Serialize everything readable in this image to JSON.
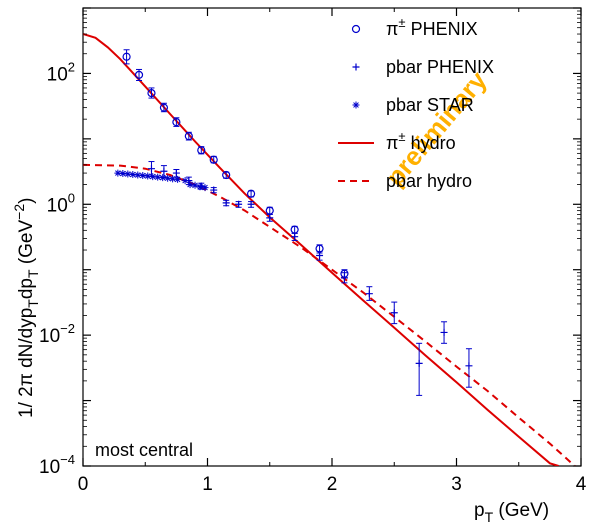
{
  "chart_data": {
    "type": "scatter",
    "title": "",
    "xlabel_main": "p",
    "xlabel_sub": "T",
    "xlabel_unit": " (GeV)",
    "ylabel": "1/ 2π dN/dyp",
    "ylabel_sub1": "T",
    "ylabel_mid": "dp",
    "ylabel_sub2": "T",
    "ylabel_unit": " (GeV",
    "ylabel_exp": "−2",
    "ylabel_close": ")",
    "xlim": [
      0,
      4
    ],
    "ylim_log10": [
      -4,
      3
    ],
    "y_scale": "log",
    "x_ticks": [
      {
        "v": 0,
        "label": "0"
      },
      {
        "v": 1,
        "label": "1"
      },
      {
        "v": 2,
        "label": "2"
      },
      {
        "v": 3,
        "label": "3"
      },
      {
        "v": 4,
        "label": "4"
      }
    ],
    "y_ticks": [
      {
        "exp": 2,
        "base": "10",
        "power": "2"
      },
      {
        "exp": 0,
        "base": "10",
        "power": "0"
      },
      {
        "exp": -2,
        "base": "10",
        "power": "−2"
      },
      {
        "exp": -4,
        "base": "10",
        "power": "−4"
      }
    ],
    "annotation": "most central",
    "watermark": "preliminary",
    "legend_position": "top-right",
    "legend": [
      {
        "label": "π",
        "sup": "±",
        "suffix": " PHENIX",
        "marker": "circle"
      },
      {
        "label": "pbar PHENIX",
        "marker": "plus"
      },
      {
        "label": "pbar STAR",
        "marker": "star"
      },
      {
        "label": "π",
        "sup": "±",
        "suffix": " hydro",
        "marker": "solid-line"
      },
      {
        "label": "pbar hydro",
        "marker": "dashed-line"
      }
    ],
    "colors": {
      "data": "#0000cc",
      "hydro": "#dd0000",
      "watermark": "#ffb000"
    },
    "series": [
      {
        "name": "π± PHENIX",
        "marker": "circle",
        "points": [
          {
            "x": 0.35,
            "y": 180,
            "elo": 140,
            "ehi": 230
          },
          {
            "x": 0.45,
            "y": 95,
            "elo": 78,
            "ehi": 115
          },
          {
            "x": 0.55,
            "y": 50,
            "elo": 42,
            "ehi": 60
          },
          {
            "x": 0.65,
            "y": 30,
            "elo": 26,
            "ehi": 35
          },
          {
            "x": 0.75,
            "y": 18,
            "elo": 15.5,
            "ehi": 21
          },
          {
            "x": 0.85,
            "y": 11,
            "elo": 9.6,
            "ehi": 12.6
          },
          {
            "x": 0.95,
            "y": 6.7,
            "elo": 5.9,
            "ehi": 7.6
          },
          {
            "x": 1.05,
            "y": 4.8,
            "elo": 4.3,
            "ehi": 5.4
          },
          {
            "x": 1.15,
            "y": 2.8,
            "elo": 2.5,
            "ehi": 3.1
          },
          {
            "x": 1.35,
            "y": 1.45,
            "elo": 1.3,
            "ehi": 1.6
          },
          {
            "x": 1.5,
            "y": 0.8,
            "elo": 0.7,
            "ehi": 0.9
          },
          {
            "x": 1.7,
            "y": 0.41,
            "elo": 0.36,
            "ehi": 0.46
          },
          {
            "x": 1.9,
            "y": 0.21,
            "elo": 0.18,
            "ehi": 0.24
          },
          {
            "x": 2.1,
            "y": 0.087,
            "elo": 0.075,
            "ehi": 0.1
          }
        ]
      },
      {
        "name": "pbar PHENIX",
        "marker": "plus",
        "points": [
          {
            "x": 0.55,
            "y": 3.5,
            "elo": 2.7,
            "ehi": 4.5
          },
          {
            "x": 0.65,
            "y": 3.2,
            "elo": 2.6,
            "ehi": 3.9
          },
          {
            "x": 0.75,
            "y": 3.0,
            "elo": 2.6,
            "ehi": 3.4
          },
          {
            "x": 0.85,
            "y": 2.3,
            "elo": 2.0,
            "ehi": 2.6
          },
          {
            "x": 0.95,
            "y": 1.9,
            "elo": 1.7,
            "ehi": 2.1
          },
          {
            "x": 1.05,
            "y": 1.65,
            "elo": 1.5,
            "ehi": 1.8
          },
          {
            "x": 1.15,
            "y": 1.05,
            "elo": 0.95,
            "ehi": 1.15
          },
          {
            "x": 1.25,
            "y": 1.0,
            "elo": 0.9,
            "ehi": 1.1
          },
          {
            "x": 1.35,
            "y": 1.0,
            "elo": 0.9,
            "ehi": 1.1
          },
          {
            "x": 1.5,
            "y": 0.62,
            "elo": 0.55,
            "ehi": 0.7
          },
          {
            "x": 1.7,
            "y": 0.32,
            "elo": 0.28,
            "ehi": 0.36
          },
          {
            "x": 1.9,
            "y": 0.165,
            "elo": 0.14,
            "ehi": 0.19
          },
          {
            "x": 2.1,
            "y": 0.075,
            "elo": 0.063,
            "ehi": 0.09
          },
          {
            "x": 2.3,
            "y": 0.043,
            "elo": 0.034,
            "ehi": 0.055
          },
          {
            "x": 2.5,
            "y": 0.022,
            "elo": 0.015,
            "ehi": 0.032
          },
          {
            "x": 2.7,
            "y": 0.0037,
            "elo": 0.0012,
            "ehi": 0.0075
          },
          {
            "x": 2.9,
            "y": 0.011,
            "elo": 0.0075,
            "ehi": 0.016
          },
          {
            "x": 3.1,
            "y": 0.0034,
            "elo": 0.0016,
            "ehi": 0.0062
          }
        ]
      },
      {
        "name": "pbar STAR",
        "marker": "star",
        "points": [
          {
            "x": 0.28,
            "y": 3.0
          },
          {
            "x": 0.32,
            "y": 2.95
          },
          {
            "x": 0.36,
            "y": 2.9
          },
          {
            "x": 0.4,
            "y": 2.85
          },
          {
            "x": 0.44,
            "y": 2.8
          },
          {
            "x": 0.48,
            "y": 2.75
          },
          {
            "x": 0.52,
            "y": 2.7
          },
          {
            "x": 0.56,
            "y": 2.65
          },
          {
            "x": 0.6,
            "y": 2.6
          },
          {
            "x": 0.64,
            "y": 2.55
          },
          {
            "x": 0.68,
            "y": 2.5
          },
          {
            "x": 0.72,
            "y": 2.45
          },
          {
            "x": 0.76,
            "y": 2.4
          },
          {
            "x": 0.82,
            "y": 2.3
          },
          {
            "x": 0.86,
            "y": 2.0
          },
          {
            "x": 0.9,
            "y": 1.95
          },
          {
            "x": 0.94,
            "y": 1.85
          },
          {
            "x": 0.98,
            "y": 1.8
          }
        ]
      },
      {
        "name": "π± hydro",
        "marker": "solid-line",
        "points": [
          {
            "x": 0.0,
            "y": 400
          },
          {
            "x": 0.1,
            "y": 350
          },
          {
            "x": 0.2,
            "y": 250
          },
          {
            "x": 0.3,
            "y": 165
          },
          {
            "x": 0.5,
            "y": 63
          },
          {
            "x": 0.7,
            "y": 24
          },
          {
            "x": 0.9,
            "y": 9.1
          },
          {
            "x": 1.1,
            "y": 3.6
          },
          {
            "x": 1.3,
            "y": 1.45
          },
          {
            "x": 1.5,
            "y": 0.63
          },
          {
            "x": 1.75,
            "y": 0.24
          },
          {
            "x": 2.0,
            "y": 0.09
          },
          {
            "x": 2.25,
            "y": 0.034
          },
          {
            "x": 2.5,
            "y": 0.013
          },
          {
            "x": 2.75,
            "y": 0.0049
          },
          {
            "x": 3.0,
            "y": 0.0019
          },
          {
            "x": 3.25,
            "y": 0.00072
          },
          {
            "x": 3.5,
            "y": 0.00028
          },
          {
            "x": 3.75,
            "y": 0.00011
          },
          {
            "x": 3.82,
            "y": 0.0001
          }
        ]
      },
      {
        "name": "pbar hydro",
        "marker": "dashed-line",
        "points": [
          {
            "x": 0.0,
            "y": 4.0
          },
          {
            "x": 0.3,
            "y": 3.9
          },
          {
            "x": 0.5,
            "y": 3.5
          },
          {
            "x": 0.7,
            "y": 2.8
          },
          {
            "x": 0.9,
            "y": 2.0
          },
          {
            "x": 1.1,
            "y": 1.3
          },
          {
            "x": 1.3,
            "y": 0.8
          },
          {
            "x": 1.5,
            "y": 0.45
          },
          {
            "x": 1.75,
            "y": 0.22
          },
          {
            "x": 2.0,
            "y": 0.1
          },
          {
            "x": 2.25,
            "y": 0.045
          },
          {
            "x": 2.5,
            "y": 0.019
          },
          {
            "x": 2.75,
            "y": 0.008
          },
          {
            "x": 3.0,
            "y": 0.0033
          },
          {
            "x": 3.25,
            "y": 0.0014
          },
          {
            "x": 3.5,
            "y": 0.00055
          },
          {
            "x": 3.75,
            "y": 0.00022
          },
          {
            "x": 3.95,
            "y": 0.0001
          }
        ]
      }
    ]
  }
}
